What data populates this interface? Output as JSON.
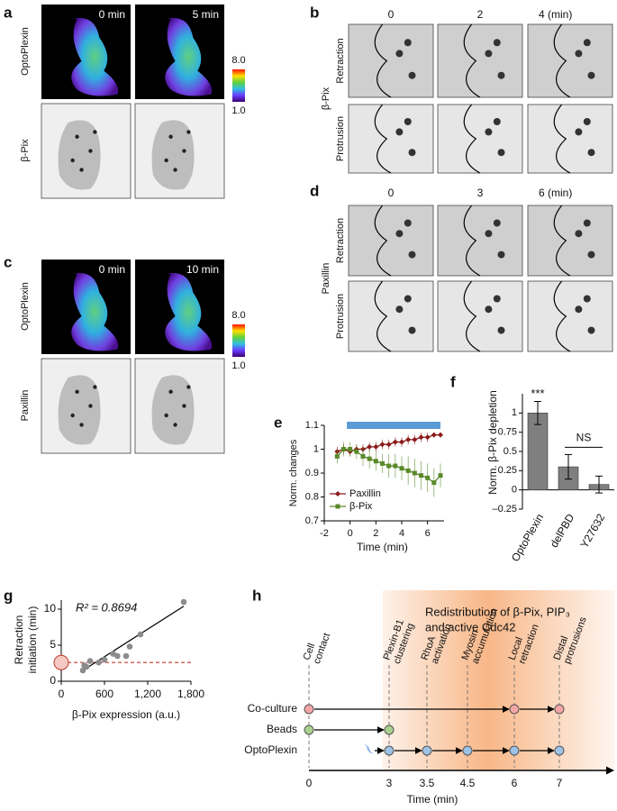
{
  "panels": {
    "a": {
      "label": "a",
      "times": [
        "0 min",
        "5 min"
      ],
      "rows": [
        "OptoPlexin",
        "β-Pix"
      ],
      "colorbar": [
        "8.0",
        "1.0"
      ]
    },
    "b": {
      "label": "b",
      "protein": "β-Pix",
      "times": [
        "0",
        "2",
        "4 (min)"
      ],
      "rows": [
        "Retraction",
        "Protrusion"
      ]
    },
    "c": {
      "label": "c",
      "times": [
        "0 min",
        "10 min"
      ],
      "rows": [
        "OptoPlexin",
        "Paxillin"
      ],
      "colorbar": [
        "8.0",
        "1.0"
      ]
    },
    "d": {
      "label": "d",
      "protein": "Paxillin",
      "times": [
        "0",
        "3",
        "6 (min)"
      ],
      "rows": [
        "Retraction",
        "Protrusion"
      ]
    }
  },
  "chart_data": [
    {
      "label": "e",
      "type": "line",
      "x": [
        -1,
        -0.5,
        0,
        0.5,
        1,
        1.5,
        2,
        2.5,
        3,
        3.5,
        4,
        4.5,
        5,
        5.5,
        6,
        6.5,
        7
      ],
      "series": [
        {
          "name": "Paxillin",
          "color": "#8b1a1a",
          "marker": "diamond",
          "values": [
            0.99,
            1.0,
            0.99,
            1.0,
            1.0,
            1.01,
            1.01,
            1.02,
            1.02,
            1.03,
            1.03,
            1.04,
            1.04,
            1.05,
            1.05,
            1.06,
            1.06
          ],
          "errors": [
            0.02,
            0.02,
            0.02,
            0.02,
            0.02,
            0.02,
            0.02,
            0.02,
            0.02,
            0.02,
            0.02,
            0.02,
            0.02,
            0.02,
            0.02,
            0.01,
            0.01
          ]
        },
        {
          "name": "β-Pix",
          "color": "#5a8a2a",
          "marker": "square",
          "values": [
            0.97,
            1.0,
            1.0,
            0.99,
            0.97,
            0.96,
            0.95,
            0.94,
            0.93,
            0.93,
            0.92,
            0.91,
            0.9,
            0.89,
            0.88,
            0.86,
            0.89
          ],
          "errors": [
            0.03,
            0.03,
            0.03,
            0.03,
            0.04,
            0.04,
            0.04,
            0.04,
            0.05,
            0.05,
            0.05,
            0.06,
            0.06,
            0.06,
            0.06,
            0.06,
            0.05
          ]
        }
      ],
      "highlight": {
        "x": [
          -0.25,
          7
        ],
        "color": "#5b9bd5"
      },
      "xlim": [
        -2,
        7
      ],
      "xticks": [
        -2,
        0,
        2,
        4,
        6
      ],
      "ylim": [
        0.7,
        1.1
      ],
      "yticks": [
        0.7,
        0.8,
        0.9,
        1,
        1.1
      ],
      "x_label": "Time (min)",
      "y_label": "Norm. changes",
      "legend": "lower left"
    },
    {
      "label": "f",
      "type": "bar",
      "categories": [
        "OptoPlexin",
        "delPBD",
        "Y27632"
      ],
      "values": [
        1,
        0.3,
        0.07
      ],
      "errors": [
        0.15,
        0.16,
        0.11
      ],
      "color": "#7f7f7f",
      "ylim": [
        -0.25,
        1.25
      ],
      "yticks": [
        {
          "value": -0.25,
          "label": "–0.25"
        },
        0,
        0.25,
        0.5,
        0.75,
        1
      ],
      "y_label": "Norm. β-Pix depletion",
      "annotations": {
        "significant": "***",
        "not_significant": "NS"
      }
    },
    {
      "label": "g",
      "type": "scatter",
      "x": [
        300,
        320,
        350,
        400,
        520,
        600,
        720,
        780,
        900,
        950,
        1100,
        1700
      ],
      "values": [
        1.5,
        2.2,
        2.0,
        2.8,
        2.6,
        3.0,
        3.8,
        3.5,
        3.5,
        4.8,
        6.5,
        11
      ],
      "color": "#8c8c8c",
      "fit": {
        "x": [
          300,
          1700
        ],
        "values": [
          1.5,
          10.4
        ]
      },
      "reference": {
        "x": 0,
        "value": 2.6,
        "color": "#c0392b"
      },
      "annotation": "R² = 0.8694",
      "xlim": [
        0,
        1800
      ],
      "xticks": [
        0,
        600,
        {
          "value": 1200,
          "label": "1,200"
        },
        {
          "value": 1800,
          "label": "1,800"
        }
      ],
      "ylim": [
        0,
        12
      ],
      "yticks": [
        0,
        5,
        10
      ],
      "x_label": "β-Pix expression (a.u.)",
      "y_label": [
        "Retraction",
        "initiation (min)"
      ]
    }
  ],
  "diagram": {
    "label": "h",
    "box": [
      "Redistribution of β-Pix, PIP₃",
      "and active Cdc42"
    ],
    "events": [
      [
        "Cell",
        "contact"
      ],
      [
        "Plexin-B1",
        "clustering"
      ],
      [
        "RhoA",
        "activation"
      ],
      [
        "Myosin",
        "accumulation"
      ],
      [
        "Local",
        "retraction"
      ],
      [
        "Distal",
        "protrusions"
      ]
    ],
    "ticks": [
      0,
      3,
      3.5,
      4.5,
      6,
      7
    ],
    "x_label": "Time (min)",
    "rows": [
      {
        "name": "Co-culture",
        "color": "#f4a6a6",
        "times": [
          0,
          6,
          7
        ]
      },
      {
        "name": "Beads",
        "color": "#a9d18e",
        "times": [
          0,
          3
        ]
      },
      {
        "name": "OptoPlexin",
        "color": "#9dc3e6",
        "times": [
          3,
          3.5,
          4.5,
          6,
          7
        ]
      }
    ]
  }
}
